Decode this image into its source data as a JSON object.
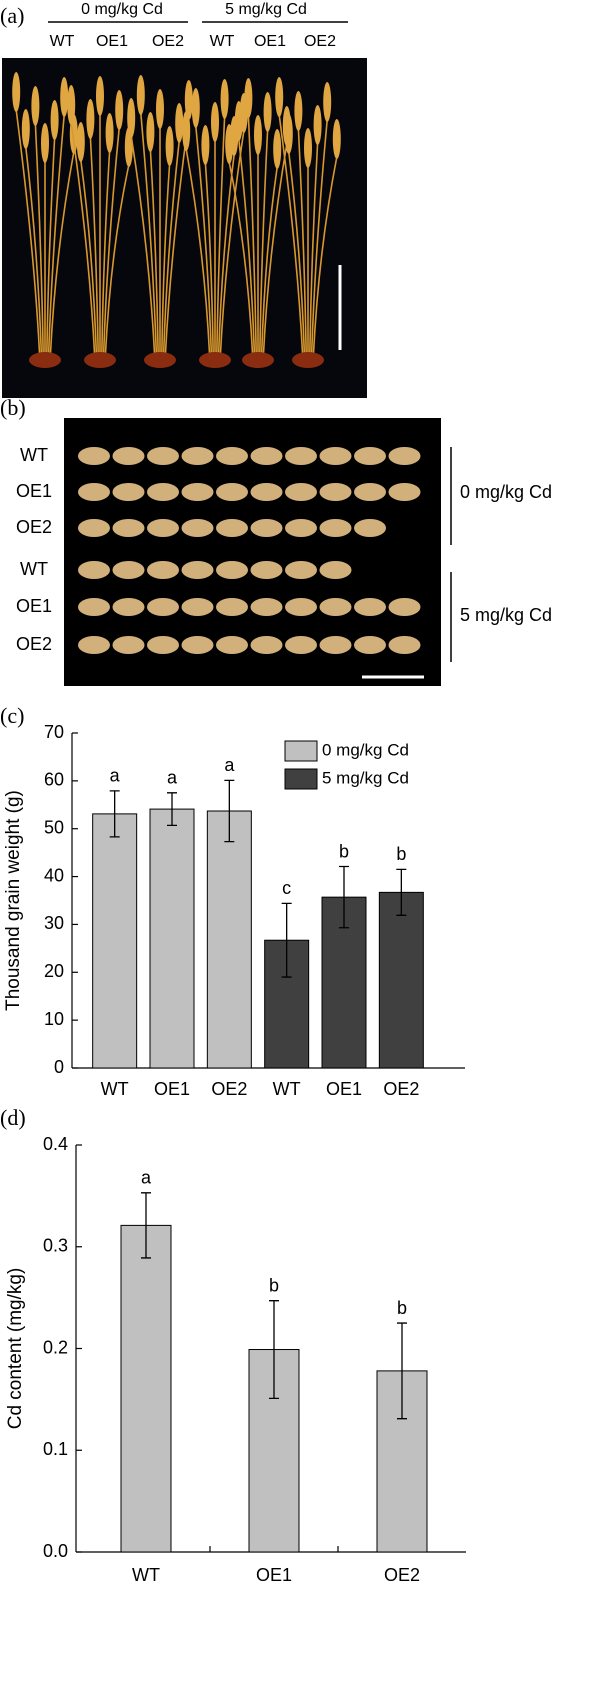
{
  "panel_a": {
    "label": "(a)",
    "groups": [
      "0 mg/kg Cd",
      "5 mg/kg Cd"
    ],
    "columns": [
      "WT",
      "OE1",
      "OE2",
      "WT",
      "OE1",
      "OE2"
    ]
  },
  "panel_b": {
    "label": "(b)",
    "rows": [
      "WT",
      "OE1",
      "OE2",
      "WT",
      "OE1",
      "OE2"
    ],
    "groups": [
      "0 mg/kg Cd",
      "5 mg/kg Cd"
    ]
  },
  "chart_data": [
    {
      "type": "bar",
      "panel_label": "(c)",
      "ylabel": "Thousand grain weight (g)",
      "categories": [
        "WT",
        "OE1",
        "OE2",
        "WT",
        "OE1",
        "OE2"
      ],
      "series": [
        {
          "name": "0 mg/kg Cd",
          "color": "#c0c0c0",
          "values": [
            53.1,
            54.1,
            53.7,
            null,
            null,
            null
          ],
          "errors": [
            4.8,
            3.4,
            6.4,
            null,
            null,
            null
          ]
        },
        {
          "name": "5 mg/kg Cd",
          "color": "#404040",
          "values": [
            null,
            null,
            null,
            26.7,
            35.7,
            36.7
          ],
          "errors": [
            null,
            null,
            null,
            7.7,
            6.4,
            4.8
          ]
        }
      ],
      "significance": [
        "a",
        "a",
        "a",
        "c",
        "b",
        "b"
      ],
      "ylim": [
        0,
        70
      ],
      "yticks": [
        0,
        10,
        20,
        30,
        40,
        50,
        60,
        70
      ],
      "legend": "upper right",
      "grid": false
    },
    {
      "type": "bar",
      "panel_label": "(d)",
      "ylabel": "Cd content (mg/kg)",
      "categories": [
        "WT",
        "OE1",
        "OE2"
      ],
      "series": [
        {
          "name": "5 mg/kg Cd",
          "color": "#c0c0c0",
          "values": [
            0.321,
            0.199,
            0.178
          ],
          "errors": [
            0.032,
            0.048,
            0.047
          ]
        }
      ],
      "significance": [
        "a",
        "b",
        "b"
      ],
      "ylim": [
        0,
        0.4
      ],
      "yticks": [
        {
          "value": 0,
          "label": "0.0"
        },
        0.1,
        0.2,
        0.3,
        0.4
      ],
      "legend": "none",
      "grid": false
    }
  ]
}
